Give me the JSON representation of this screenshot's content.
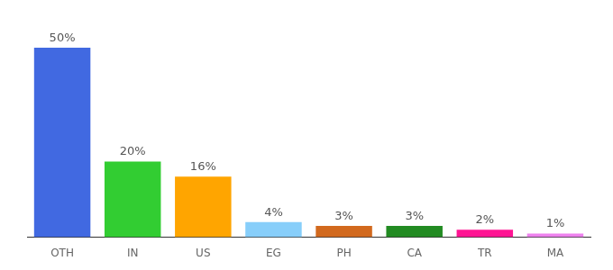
{
  "chart_data": {
    "type": "bar",
    "categories": [
      "OTH",
      "IN",
      "US",
      "EG",
      "PH",
      "CA",
      "TR",
      "MA"
    ],
    "values": [
      50,
      20,
      16,
      4,
      3,
      3,
      2,
      1
    ],
    "value_labels": [
      "50%",
      "20%",
      "16%",
      "4%",
      "3%",
      "3%",
      "2%",
      "1%"
    ],
    "colors": [
      "#4169e1",
      "#32cd32",
      "#ffa500",
      "#87cefa",
      "#d2691e",
      "#228b22",
      "#ff1493",
      "#ee82ee"
    ],
    "ylim": [
      0,
      55
    ],
    "grid": false,
    "data_labels": true,
    "tick_labels": "x"
  }
}
